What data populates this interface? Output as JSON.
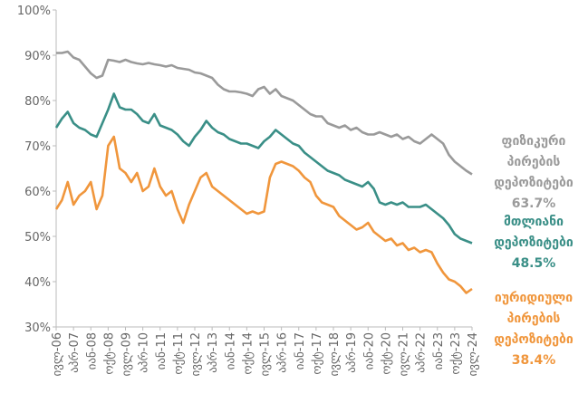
{
  "chart_data": {
    "type": "line",
    "categories": [
      "ივლ-06",
      null,
      null,
      "აპრ-07",
      null,
      null,
      "იან-08",
      null,
      null,
      "ოქტ-08",
      null,
      null,
      "ივლ-09",
      null,
      null,
      "აპრ-10",
      null,
      null,
      "იან-11",
      null,
      null,
      "ოქტ-11",
      null,
      null,
      "ივლ-12",
      null,
      null,
      "აპრ-13",
      null,
      null,
      "იან-14",
      null,
      null,
      "ოქტ-14",
      null,
      null,
      "ივლ-15",
      null,
      null,
      "აპრ-16",
      null,
      null,
      "იან-17",
      null,
      null,
      "ოქტ-17",
      null,
      null,
      "ივლ-18",
      null,
      null,
      "აპრ-19",
      null,
      null,
      "იან-20",
      null,
      null,
      "ოქტ-20",
      null,
      null,
      "ივლ-21",
      null,
      null,
      "აპრ-22",
      null,
      null,
      "იან-23",
      null,
      null,
      "ოქტ-23",
      null,
      null,
      "ივლ-24"
    ],
    "series": [
      {
        "name": "ფიზიკური პირების დეპოზიტები",
        "color": "#9a9a9a",
        "values": [
          90.5,
          90.5,
          90.8,
          89.5,
          89,
          87.5,
          86,
          85,
          85.5,
          89,
          88.8,
          88.5,
          89,
          88.5,
          88.2,
          88,
          88.3,
          88,
          87.8,
          87.5,
          87.8,
          87.2,
          87,
          86.8,
          86.2,
          86,
          85.5,
          85,
          83.5,
          82.5,
          82,
          82,
          81.8,
          81.5,
          81,
          82.5,
          83,
          81.5,
          82.5,
          81,
          80.5,
          80,
          79,
          78,
          77,
          76.5,
          76.5,
          75,
          74.5,
          74,
          74.5,
          73.5,
          74,
          73,
          72.5,
          72.5,
          73,
          72.5,
          72,
          72.5,
          71.5,
          72,
          71,
          70.5,
          71.5,
          72.5,
          71.5,
          70.5,
          68,
          66.5,
          65.5,
          64.5,
          63.7
        ],
        "value_labels": [
          null,
          null,
          null,
          null,
          null,
          null,
          null,
          null,
          null,
          null,
          null,
          null,
          null,
          null,
          null,
          null,
          null,
          null,
          null,
          null,
          null,
          null,
          null,
          null,
          null,
          null,
          null,
          null,
          null,
          null,
          null,
          null,
          null,
          null,
          null,
          null,
          null,
          null,
          null,
          null,
          null,
          null,
          null,
          null,
          null,
          null,
          null,
          null,
          null,
          null,
          null,
          null,
          null,
          null,
          null,
          null,
          null,
          null,
          null,
          null,
          null,
          null,
          null,
          null,
          null,
          null,
          null,
          null,
          null,
          null,
          null,
          null,
          "63.7%"
        ]
      },
      {
        "name": "მთლიანი დეპოზიტები",
        "color": "#3a8f87",
        "values": [
          74,
          76,
          77.5,
          75,
          74,
          73.5,
          72.5,
          72,
          75,
          78,
          81.5,
          78.5,
          78,
          78,
          77,
          75.5,
          75,
          77,
          74.5,
          74,
          73.5,
          72.5,
          71,
          70,
          72,
          73.5,
          75.5,
          74,
          73,
          72.5,
          71.5,
          71,
          70.5,
          70.5,
          70,
          69.5,
          71,
          72,
          73.5,
          72.5,
          71.5,
          70.5,
          70,
          68.5,
          67.5,
          66.5,
          65.5,
          64.5,
          64,
          63.5,
          62.5,
          62,
          61.5,
          61,
          62,
          60.5,
          57.5,
          57,
          57.5,
          57,
          57.5,
          56.5,
          56.5,
          56.5,
          57,
          56,
          55,
          54,
          52.5,
          50.5,
          49.5,
          49,
          48.5
        ],
        "value_labels": [
          null,
          null,
          null,
          null,
          null,
          null,
          null,
          null,
          null,
          null,
          null,
          null,
          null,
          null,
          null,
          null,
          null,
          null,
          null,
          null,
          null,
          null,
          null,
          null,
          null,
          null,
          null,
          null,
          null,
          null,
          null,
          null,
          null,
          null,
          null,
          null,
          null,
          null,
          null,
          null,
          null,
          null,
          null,
          null,
          null,
          null,
          null,
          null,
          null,
          null,
          null,
          null,
          null,
          null,
          null,
          null,
          null,
          null,
          null,
          null,
          null,
          null,
          null,
          null,
          null,
          null,
          null,
          null,
          null,
          null,
          null,
          null,
          "48.5%"
        ]
      },
      {
        "name": "იურიდიული პირების დეპოზიტები",
        "color": "#f0963c",
        "values": [
          56,
          58,
          62,
          57,
          59,
          60,
          62,
          56,
          59,
          70,
          72,
          65,
          64,
          62,
          64,
          60,
          61,
          65,
          61,
          59,
          60,
          56,
          53,
          57,
          60,
          63,
          64,
          61,
          60,
          59,
          58,
          57,
          56,
          55,
          55.5,
          55,
          55.5,
          63,
          66,
          66.5,
          66,
          65.5,
          64.5,
          63,
          62,
          59,
          57.5,
          57,
          56.5,
          54.5,
          53.5,
          52.5,
          51.5,
          52,
          53,
          51,
          50,
          49,
          49.5,
          48,
          48.5,
          47,
          47.5,
          46.5,
          47,
          46.5,
          44,
          42,
          40.5,
          40,
          39,
          37.5,
          38.4
        ],
        "value_labels": [
          null,
          null,
          null,
          null,
          null,
          null,
          null,
          null,
          null,
          null,
          null,
          null,
          null,
          null,
          null,
          null,
          null,
          null,
          null,
          null,
          null,
          null,
          null,
          null,
          null,
          null,
          null,
          null,
          null,
          null,
          null,
          null,
          null,
          null,
          null,
          null,
          null,
          null,
          null,
          null,
          null,
          null,
          null,
          null,
          null,
          null,
          null,
          null,
          null,
          null,
          null,
          null,
          null,
          null,
          null,
          null,
          null,
          null,
          null,
          null,
          null,
          null,
          null,
          null,
          null,
          null,
          null,
          null,
          null,
          null,
          null,
          null,
          "38.4%"
        ]
      }
    ],
    "ylim": [
      30,
      100
    ],
    "yticks": [
      {
        "value": 30,
        "label": "30%"
      },
      {
        "value": 40,
        "label": "40%"
      },
      {
        "value": 50,
        "label": "50%"
      },
      {
        "value": 60,
        "label": "60%"
      },
      {
        "value": 70,
        "label": "70%"
      },
      {
        "value": 80,
        "label": "80%"
      },
      {
        "value": 90,
        "label": "90%"
      },
      {
        "value": 100,
        "label": "100%"
      }
    ],
    "grid": false
  }
}
